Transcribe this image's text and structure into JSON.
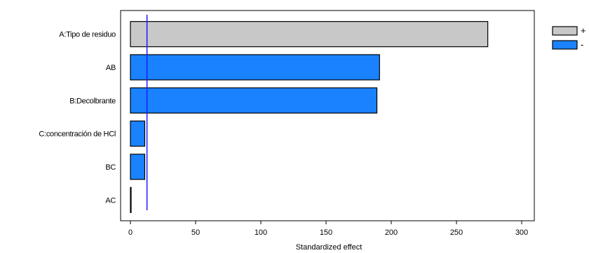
{
  "chart_data": {
    "type": "bar",
    "orientation": "horizontal",
    "title": "",
    "xlabel": "Standardized effect",
    "ylabel": "",
    "xlim": [
      0,
      300
    ],
    "xticks": [
      0,
      50,
      100,
      150,
      200,
      250,
      300
    ],
    "xtick_labels": [
      "0",
      "50",
      "100",
      "150",
      "200",
      "250",
      "300"
    ],
    "categories": [
      "A:Tipo de residuo",
      "AB",
      "B:Decolbrante",
      "C:concentración de HCl",
      "BC",
      "AC"
    ],
    "values": [
      274,
      191,
      189,
      11,
      11,
      0.3
    ],
    "signs": [
      "+",
      "-",
      "-",
      "-",
      "-",
      "+"
    ],
    "reference_line": 12.7,
    "legend": {
      "position": "top-right",
      "entries": [
        {
          "label": "+",
          "color": "#c8c8c8"
        },
        {
          "label": "-",
          "color": "#1a82ff"
        }
      ]
    },
    "grid": false
  }
}
